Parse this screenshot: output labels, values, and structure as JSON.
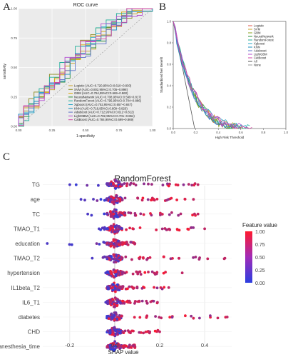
{
  "panels": {
    "a": "A",
    "b": "B",
    "c": "C"
  },
  "chart_data": [
    {
      "type": "line",
      "title": "ROC curve",
      "xlabel": "1-specificity",
      "ylabel": "sensitivity",
      "xlim": [
        0,
        1
      ],
      "ylim": [
        0,
        1
      ],
      "xticks": [
        "0.00",
        "0.25",
        "0.50",
        "0.75",
        "1.00"
      ],
      "yticks": [
        "0.00",
        "0.25",
        "0.50",
        "0.75",
        "1.00"
      ],
      "legend_position": "bottom-right",
      "series": [
        {
          "name": "Logistic (AUC=0.720,95%CI:0.610~0.830)",
          "color": "#c9a227"
        },
        {
          "name": "SVM (AUC=0.802,95%CI:0.705~0.898)",
          "color": "#8a8a1e"
        },
        {
          "name": "GBM (AUC=0.764,95%CI:0.669~0.860)",
          "color": "#d9a600"
        },
        {
          "name": "NeuralNetwork (AUC=0.708,95%CI:0.599~0.817)",
          "color": "#2f8f3a"
        },
        {
          "name": "RandomForest (AUC=0.795,95%CI:0.704~0.886)",
          "color": "#1fae9a"
        },
        {
          "name": "Xgboost (AUC=0.752,95%CI:0.657~0.847)",
          "color": "#2aa7c9"
        },
        {
          "name": "KNN (AUC=0.718,95%CI:0.609~0.826)",
          "color": "#1d8fbf"
        },
        {
          "name": "Adaboost (AUC=0.712,95%CI:0.612~0.812)",
          "color": "#5f73c9"
        },
        {
          "name": "LightGBM (AUC=0.782,95%CI:0.701~0.864)",
          "color": "#b34fd1"
        },
        {
          "name": "CatBoost (AUC=0.784,95%CI:0.699~0.869)",
          "color": "#d147a3"
        }
      ]
    },
    {
      "type": "line",
      "title": "",
      "xlabel": "High Risk Threshold",
      "ylabel": "Standardized Net Benefit",
      "xlim": [
        0,
        1
      ],
      "ylim": [
        0,
        1
      ],
      "xticks": [
        "0.0",
        "0.2",
        "0.4",
        "0.6",
        "0.8",
        "1.0"
      ],
      "yticks": [
        "0.0",
        "0.2",
        "0.4",
        "0.6",
        "0.8",
        "1.0"
      ],
      "legend_position": "top-right",
      "series": [
        {
          "name": "Logistic",
          "color": "#e05a4f"
        },
        {
          "name": "SVM",
          "color": "#c9a227"
        },
        {
          "name": "GBM",
          "color": "#8aa21e"
        },
        {
          "name": "NeuralNetwork",
          "color": "#2f8f3a"
        },
        {
          "name": "RandomForest",
          "color": "#1fae9a"
        },
        {
          "name": "Xgboost",
          "color": "#2aa7c9"
        },
        {
          "name": "KNN",
          "color": "#1d8fbf"
        },
        {
          "name": "Adaboost",
          "color": "#5f73c9"
        },
        {
          "name": "LightGBM",
          "color": "#b34fd1"
        },
        {
          "name": "CatBoost",
          "color": "#d147a3"
        },
        {
          "name": "All",
          "color": "#555555"
        },
        {
          "name": "None",
          "color": "#999999"
        }
      ]
    },
    {
      "type": "scatter",
      "title": "RandomForest",
      "xlabel": "SHAP value",
      "xlim": [
        -0.32,
        0.52
      ],
      "xticks": [
        -0.2,
        0.0,
        0.2,
        0.4
      ],
      "xtick_labels": [
        "-0.2",
        "0.0",
        "0.2",
        "0.4"
      ],
      "grid": true,
      "features": [
        {
          "name": "TG",
          "min": -0.2,
          "max": 0.37
        },
        {
          "name": "age",
          "min": -0.15,
          "max": 0.35
        },
        {
          "name": "TC",
          "min": -0.12,
          "max": 0.37
        },
        {
          "name": "TMAO_T1",
          "min": -0.07,
          "max": 0.4
        },
        {
          "name": "education",
          "min": -0.3,
          "max": 0.09
        },
        {
          "name": "TMAO_T2",
          "min": -0.1,
          "max": 0.49
        },
        {
          "name": "hypertension",
          "min": -0.04,
          "max": 0.3
        },
        {
          "name": "IL1beta_T2",
          "min": -0.03,
          "max": 0.24
        },
        {
          "name": "IL6_T1",
          "min": -0.04,
          "max": 0.19
        },
        {
          "name": "diabetes",
          "min": -0.01,
          "max": 0.5
        },
        {
          "name": "CHD",
          "min": -0.02,
          "max": 0.2
        },
        {
          "name": "anesthesia_time",
          "min": -0.02,
          "max": 0.09
        }
      ],
      "legend": {
        "title": "Feature value",
        "ticks": [
          "1.00",
          "0.75",
          "0.50",
          "0.25",
          "0.00"
        ],
        "colors": [
          "#ff1a2e",
          "#2b3fe0"
        ]
      }
    }
  ]
}
